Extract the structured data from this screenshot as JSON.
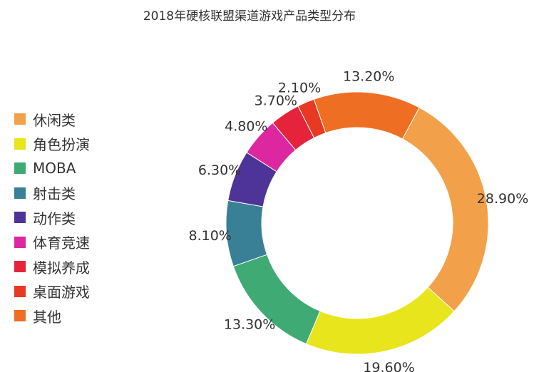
{
  "title": "2018年硬核联盟渠道游戏产品类型分布",
  "chart_data": {
    "type": "pie",
    "donut": true,
    "title": "2018年硬核联盟渠道游戏产品类型分布",
    "legend_placement": "left",
    "slices": [
      {
        "label": "休闲类",
        "value": 28.9,
        "display": "28.90%",
        "color": "#F2A14A"
      },
      {
        "label": "角色扮演",
        "value": 19.6,
        "display": "19.60%",
        "color": "#E8E51C"
      },
      {
        "label": "MOBA",
        "value": 13.3,
        "display": "13.30%",
        "color": "#3FAA73"
      },
      {
        "label": "射击类",
        "value": 8.1,
        "display": "8.10%",
        "color": "#398096"
      },
      {
        "label": "动作类",
        "value": 6.3,
        "display": "6.30%",
        "color": "#4E3499"
      },
      {
        "label": "体育竞速",
        "value": 4.8,
        "display": "4.80%",
        "color": "#DC27A0"
      },
      {
        "label": "模拟养成",
        "value": 3.7,
        "display": "3.70%",
        "color": "#E5243C"
      },
      {
        "label": "桌面游戏",
        "value": 2.1,
        "display": "2.10%",
        "color": "#E83A23"
      },
      {
        "label": "其他",
        "value": 13.2,
        "display": "13.20%",
        "color": "#EE6F24"
      }
    ]
  }
}
